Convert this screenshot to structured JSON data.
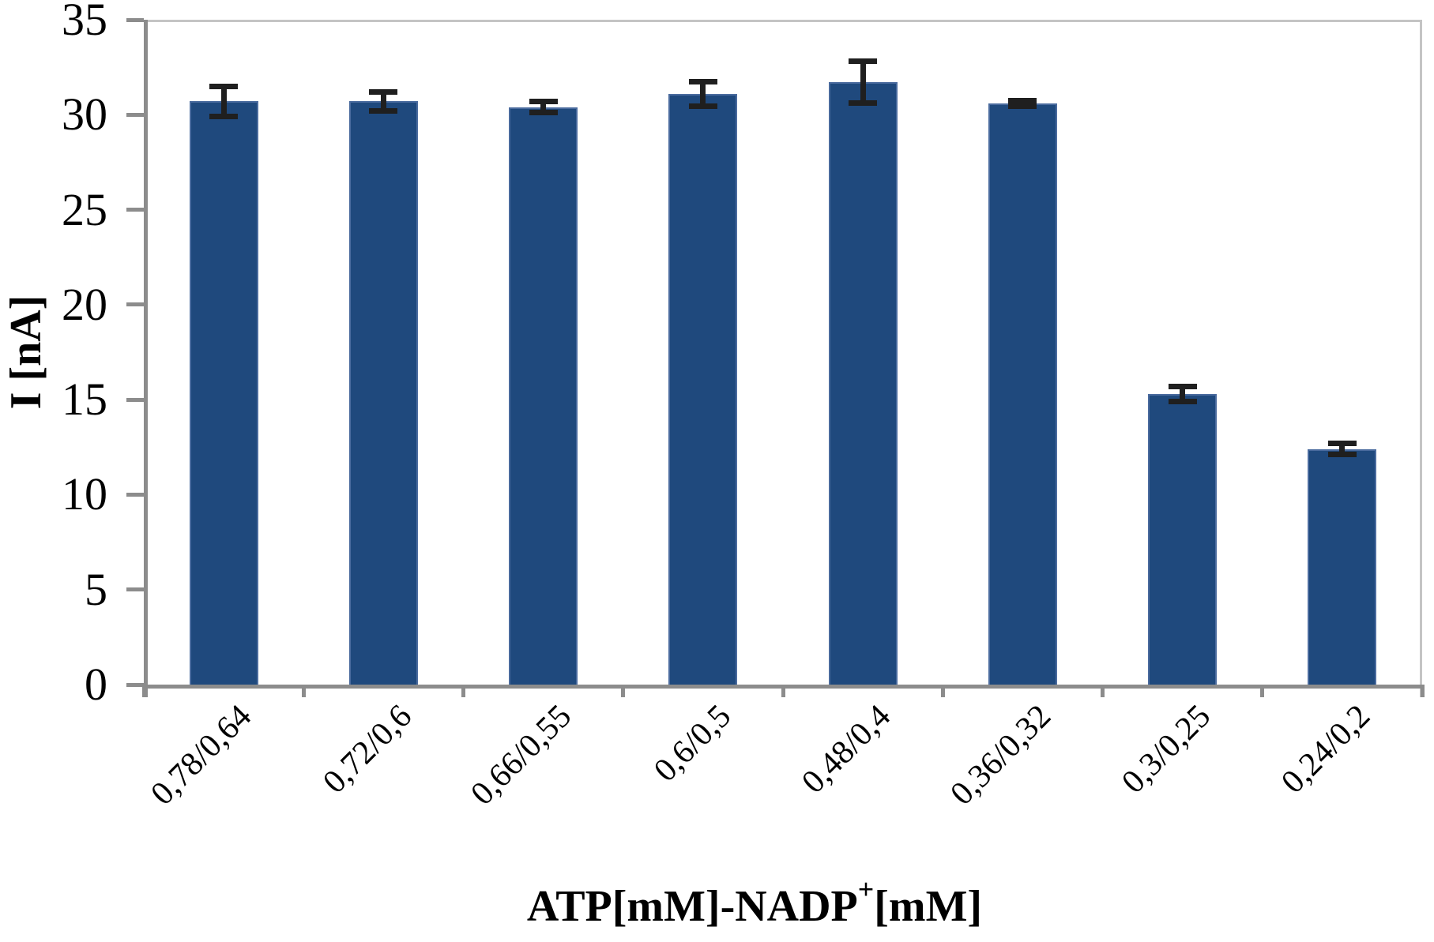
{
  "chart_data": {
    "type": "bar",
    "title": "",
    "categories": [
      "0,78/0,64",
      "0,72/0,6",
      "0,66/0,55",
      "0,6/0,5",
      "0,48/0,4",
      "0,36/0,32",
      "0,3/0,25",
      "0,24/0,2"
    ],
    "series": [
      {
        "name": "I",
        "values": [
          30.7,
          30.7,
          30.4,
          31.1,
          31.7,
          30.6,
          15.3,
          12.4
        ],
        "errors": [
          0.8,
          0.5,
          0.3,
          0.65,
          1.1,
          0.15,
          0.4,
          0.3
        ]
      }
    ],
    "ylabel": "I [nA]",
    "xlabel_prefix": "ATP[mM]-NADP",
    "xlabel_sup": "+",
    "xlabel_suffix": "[mM]",
    "ylim": [
      0,
      35
    ],
    "yticks": [
      0,
      5,
      10,
      15,
      20,
      25,
      30,
      35
    ],
    "grid": false,
    "legend_position": "none",
    "error_bars": true,
    "colors": {
      "bar_fill": "#1F497D",
      "bar_edge": "#4A6B9E",
      "axis": "#8C8C8C",
      "frame": "#C4C4C4",
      "error_bar": "#1F1F1F",
      "text": "#000000",
      "background": "#FFFFFF"
    }
  }
}
